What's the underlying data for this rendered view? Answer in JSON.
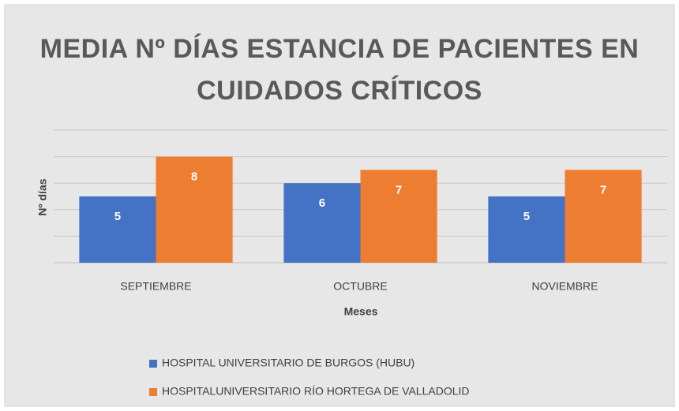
{
  "chart_data": {
    "type": "bar",
    "title": "MEDIA Nº DÍAS ESTANCIA DE PACIENTES EN CUIDADOS CRÍTICOS",
    "y_label": "Nº días",
    "x_label": "Meses",
    "categories": [
      "SEPTIEMBRE",
      "OCTUBRE",
      "NOVIEMBRE"
    ],
    "series": [
      {
        "name": "HOSPITAL UNIVERSITARIO DE BURGOS (HUBU)",
        "color": "#4472c4",
        "values": [
          5,
          6,
          5
        ]
      },
      {
        "name": "HOSPITALUNIVERSITARIO RÍO HORTEGA DE VALLADOLID",
        "color": "#ed7d31",
        "values": [
          8,
          7,
          7
        ]
      }
    ],
    "ylim": [
      0,
      10
    ],
    "yticks": [
      0,
      2,
      4,
      6,
      8,
      10
    ],
    "grid": true,
    "legend": "bottom"
  }
}
